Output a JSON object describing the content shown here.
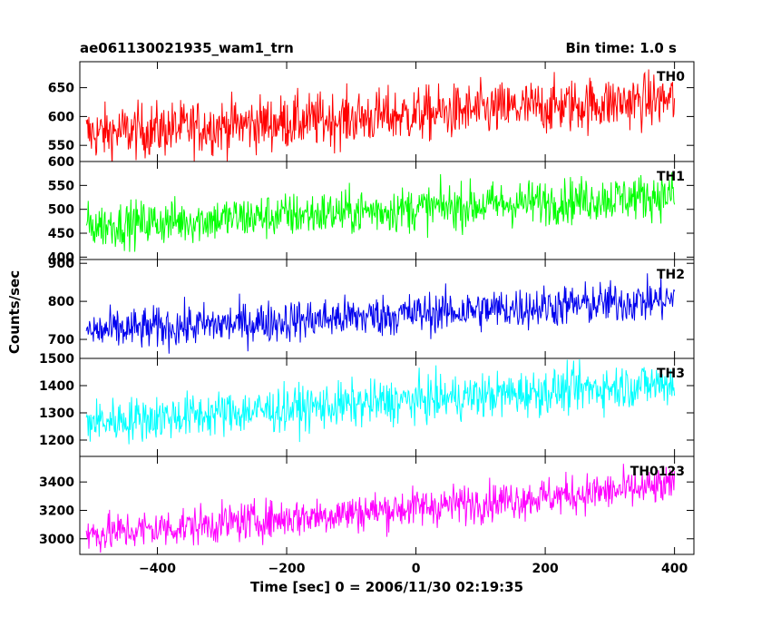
{
  "header": {
    "title": "ae061130021935_wam1_trn",
    "bin_time": "Bin time: 1.0 s"
  },
  "axes": {
    "xlabel": "Time [sec] 0 = 2006/11/30 02:19:35",
    "ylabel": "Counts/sec"
  },
  "chart_data": [
    {
      "type": "line",
      "name": "TH0",
      "color": "#ff0000",
      "x_range": [
        -510,
        400
      ],
      "xlim": [
        -520,
        430
      ],
      "ylim": [
        522,
        695
      ],
      "yticks": [
        550,
        600,
        650
      ],
      "xticks": [
        -400,
        -200,
        0,
        200,
        400
      ],
      "trend": [
        [
          -510,
          570
        ],
        [
          400,
          630
        ]
      ],
      "noise_sd": 24
    },
    {
      "type": "line",
      "name": "TH1",
      "color": "#00ff00",
      "x_range": [
        -510,
        400
      ],
      "xlim": [
        -520,
        430
      ],
      "ylim": [
        395,
        600
      ],
      "yticks": [
        400,
        450,
        500,
        550,
        600
      ],
      "xticks": [
        -400,
        -200,
        0,
        200,
        400
      ],
      "trend": [
        [
          -510,
          465
        ],
        [
          400,
          530
        ]
      ],
      "noise_sd": 24
    },
    {
      "type": "line",
      "name": "TH2",
      "color": "#0000ee",
      "x_range": [
        -510,
        400
      ],
      "xlim": [
        -520,
        430
      ],
      "ylim": [
        650,
        910
      ],
      "yticks": [
        700,
        800,
        900
      ],
      "xticks": [
        -400,
        -200,
        0,
        200,
        400
      ],
      "trend": [
        [
          -510,
          720
        ],
        [
          400,
          805
        ]
      ],
      "noise_sd": 28
    },
    {
      "type": "line",
      "name": "TH3",
      "color": "#00ffff",
      "x_range": [
        -510,
        400
      ],
      "xlim": [
        -520,
        430
      ],
      "ylim": [
        1140,
        1500
      ],
      "yticks": [
        1200,
        1300,
        1400,
        1500
      ],
      "xticks": [
        -400,
        -200,
        0,
        200,
        400
      ],
      "trend": [
        [
          -510,
          1265
        ],
        [
          400,
          1410
        ]
      ],
      "noise_sd": 42
    },
    {
      "type": "line",
      "name": "TH0123",
      "color": "#ff00ff",
      "x_range": [
        -510,
        400
      ],
      "xlim": [
        -520,
        430
      ],
      "ylim": [
        2890,
        3580
      ],
      "yticks": [
        3000,
        3200,
        3400
      ],
      "xticks": [
        -400,
        -200,
        0,
        200,
        400
      ],
      "xticklabels": [
        "−400",
        "−200",
        "0",
        "200",
        "400"
      ],
      "trend": [
        [
          -510,
          3030
        ],
        [
          400,
          3370
        ]
      ],
      "noise_sd": 70
    }
  ]
}
